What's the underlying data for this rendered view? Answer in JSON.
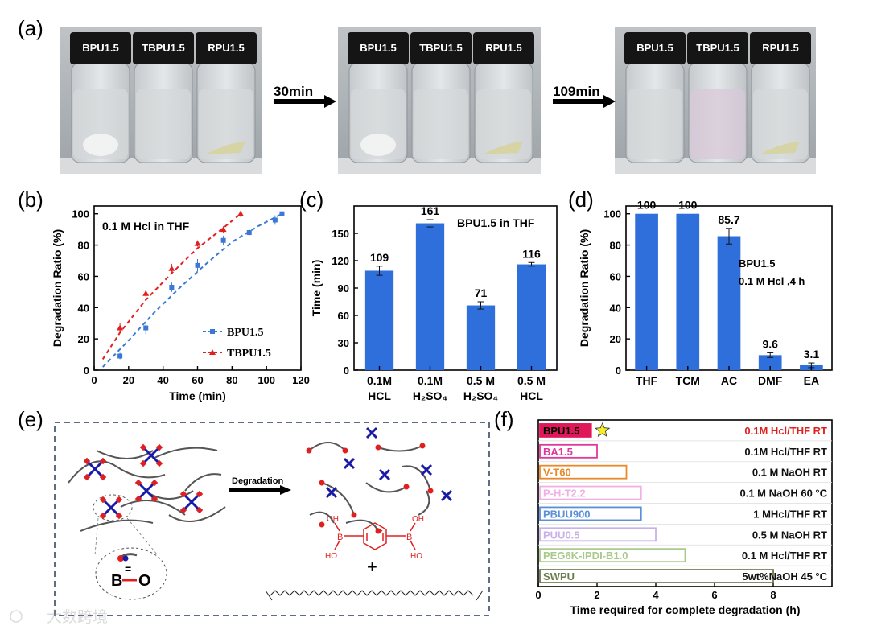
{
  "panel_labels": {
    "a": "(a)",
    "b": "(b)",
    "c": "(c)",
    "d": "(d)",
    "e": "(e)",
    "f": "(f)"
  },
  "panel_a": {
    "vial_labels": [
      "BPU1.5",
      "TBPU1.5",
      "RPU1.5"
    ],
    "arrow1": "30min",
    "arrow2": "109min",
    "colors": {
      "liquid": "#d4d8da",
      "cap": "#151515",
      "tbpu_tint_late": "#d8c8d8"
    }
  },
  "chart_data": [
    {
      "id": "b",
      "type": "scatter",
      "title": "0.1 M Hcl in THF",
      "xlabel": "Time (min)",
      "ylabel": "Degradation Ratio (%)",
      "xlim": [
        0,
        120
      ],
      "ylim": [
        0,
        105
      ],
      "xticks": [
        0,
        20,
        40,
        60,
        80,
        100,
        120
      ],
      "yticks": [
        0,
        20,
        40,
        60,
        80,
        100
      ],
      "legend_position": "bottom-right",
      "series": [
        {
          "name": "BPU1.5",
          "color": "#3a78d6",
          "marker": "square",
          "x": [
            15,
            30,
            45,
            60,
            75,
            90,
            105,
            109
          ],
          "y": [
            9,
            27,
            53,
            67,
            83,
            88,
            96,
            100
          ],
          "err": [
            2,
            4,
            3,
            4,
            3,
            2,
            3,
            2
          ],
          "fit_x": [
            5,
            20,
            35,
            50,
            65,
            80,
            95,
            109
          ],
          "fit_y": [
            2,
            19,
            37,
            53,
            68,
            82,
            92,
            100
          ]
        },
        {
          "name": "TBPU1.5",
          "color": "#e02020",
          "marker": "triangle",
          "x": [
            15,
            30,
            45,
            60,
            75,
            85
          ],
          "y": [
            27,
            49,
            65,
            81,
            90,
            100
          ],
          "err": [
            3,
            2,
            3,
            2,
            2,
            2
          ],
          "fit_x": [
            5,
            15,
            30,
            45,
            60,
            75,
            85
          ],
          "fit_y": [
            7,
            24,
            45,
            62,
            78,
            91,
            100
          ]
        }
      ]
    },
    {
      "id": "c",
      "type": "bar",
      "title": "BPU1.5 in THF",
      "xlabel": "",
      "ylabel": "Time (min)",
      "ylim": [
        0,
        180
      ],
      "yticks": [
        0,
        30,
        60,
        90,
        120,
        150
      ],
      "categories": [
        [
          "0.1M",
          "HCL"
        ],
        [
          "0.1M",
          "H₂SO₄"
        ],
        [
          "0.5 M",
          "H₂SO₄"
        ],
        [
          "0.5 M",
          "HCL"
        ]
      ],
      "values": [
        109,
        161,
        71,
        116
      ],
      "value_labels": [
        "109",
        "161",
        "71",
        "116"
      ],
      "err": [
        5,
        4,
        4,
        2
      ],
      "color": "#2f6fdc"
    },
    {
      "id": "d",
      "type": "bar",
      "title": "",
      "annotation": [
        "BPU1.5",
        "0.1 M Hcl ,4 h"
      ],
      "xlabel": "",
      "ylabel": "Degradation Ratio (%)",
      "ylim": [
        0,
        105
      ],
      "yticks": [
        0,
        20,
        40,
        60,
        80,
        100
      ],
      "categories": [
        "THF",
        "TCM",
        "AC",
        "DMF",
        "EA"
      ],
      "values": [
        100,
        100,
        85.7,
        9.6,
        3.1
      ],
      "value_labels": [
        "100",
        "100",
        "85.7",
        "9.6",
        "3.1"
      ],
      "err": [
        0,
        0,
        5,
        1.5,
        1.5
      ],
      "color": "#2f6fdc"
    },
    {
      "id": "f",
      "type": "bar",
      "orientation": "horizontal",
      "title": "",
      "xlabel": "Time required for complete degradation (h)",
      "ylabel": "",
      "xlim": [
        0,
        10
      ],
      "xticks": [
        0,
        2,
        4,
        6,
        8
      ],
      "categories": [
        "BPU1.5",
        "BA1.5",
        "V-T60",
        "P-H-T2.2",
        "PBUU900",
        "PUU0.5",
        "PEG6K-IPDI-B1.0",
        "SWPU"
      ],
      "values": [
        1.8,
        2,
        3,
        3.5,
        3.5,
        4,
        5,
        8
      ],
      "conditions": [
        "0.1M Hcl/THF RT",
        "0.1M Hcl/THF RT",
        "0.1 M NaOH  RT",
        "0.1 M NaOH 60 °C",
        "1 MHcl/THF RT",
        "0.5 M NaOH RT",
        "0.1 M Hcl/THF RT",
        "5wt%NaOH 45 °C"
      ],
      "colors": [
        "#e0185a",
        "#e0389a",
        "#e8892a",
        "#f0b0e4",
        "#5b8fd8",
        "#c8b0e8",
        "#a9c98a",
        "#6b7a4a"
      ],
      "highlight_color": "#e02020"
    }
  ],
  "panel_e": {
    "arrow_label": "Degradation",
    "bond_b": "B",
    "bond_o": "O",
    "bond_eq": "=",
    "oh_labels": [
      "OH",
      "HO",
      "OH",
      "HO"
    ],
    "boron_labels": [
      "B",
      "B"
    ],
    "plus": "+",
    "colors": {
      "boronic": "#e02020",
      "crosslink": "#1a1aa8",
      "chain": "#555555"
    }
  },
  "watermark": "大数跨境"
}
